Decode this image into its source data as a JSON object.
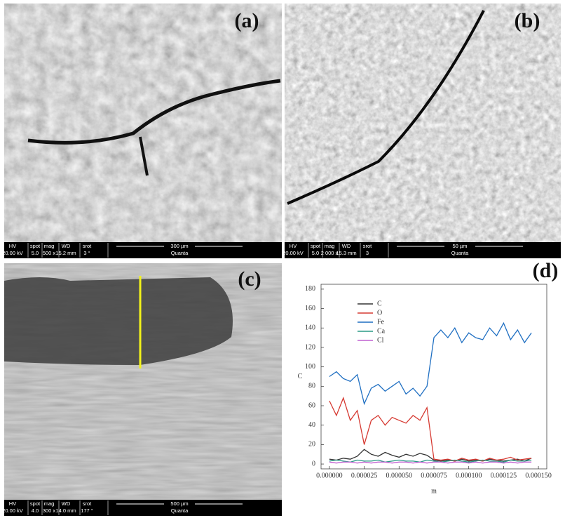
{
  "panels": [
    {
      "label": "(a)",
      "info_bar": {
        "headers": [
          "HV",
          "spot",
          "mag",
          "WD",
          "srot"
        ],
        "values": [
          "20.00 kV",
          "5.0",
          "500 x",
          "15.2 mm",
          "3 °"
        ],
        "scale": "300 µm",
        "brand": "Quanta"
      }
    },
    {
      "label": "(b)",
      "info_bar": {
        "headers": [
          "HV",
          "spot",
          "mag",
          "WD",
          "srot"
        ],
        "values": [
          "20.00 kV",
          "5.0",
          "2 000 x",
          "15.3 mm",
          "3"
        ],
        "scale": "50 µm",
        "brand": "Quanta"
      }
    },
    {
      "label": "(c)",
      "info_bar": {
        "headers": [
          "HV",
          "spot",
          "mag",
          "WD",
          "srot"
        ],
        "values": [
          "20.00 kV",
          "4.0",
          "300 x",
          "14.0 mm",
          "177 °"
        ],
        "scale": "500 µm",
        "brand": "Quanta"
      }
    }
  ],
  "chart_data": {
    "type": "line",
    "panel_label": "(d)",
    "x_label": "m",
    "y_label": "C",
    "x": [
      0,
      5e-06,
      1e-05,
      1.5e-05,
      2e-05,
      2.5e-05,
      3e-05,
      3.5e-05,
      4e-05,
      4.5e-05,
      5e-05,
      5.5e-05,
      6e-05,
      6.5e-05,
      7e-05,
      7.5e-05,
      8e-05,
      8.5e-05,
      9e-05,
      9.5e-05,
      0.0001,
      0.000105,
      0.00011,
      0.000115,
      0.00012,
      0.000125,
      0.00013,
      0.000135,
      0.00014,
      0.000145
    ],
    "series": [
      {
        "name": "C",
        "color": "#333333",
        "values": [
          5,
          4,
          6,
          5,
          8,
          15,
          10,
          8,
          12,
          9,
          7,
          10,
          8,
          11,
          9,
          4,
          3,
          4,
          3,
          5,
          3,
          4,
          3,
          5,
          4,
          3,
          4,
          5,
          3,
          6
        ]
      },
      {
        "name": "O",
        "color": "#d63a32",
        "values": [
          65,
          50,
          68,
          45,
          55,
          20,
          45,
          50,
          40,
          48,
          45,
          42,
          50,
          45,
          58,
          5,
          4,
          5,
          3,
          6,
          4,
          5,
          3,
          6,
          4,
          5,
          7,
          4,
          5,
          6
        ]
      },
      {
        "name": "Fe",
        "color": "#1f6fc2",
        "values": [
          90,
          95,
          88,
          85,
          92,
          62,
          78,
          82,
          75,
          80,
          85,
          72,
          78,
          70,
          80,
          130,
          138,
          130,
          140,
          125,
          135,
          130,
          128,
          140,
          132,
          145,
          128,
          138,
          125,
          135
        ]
      },
      {
        "name": "Ca",
        "color": "#2a9a86",
        "values": [
          3,
          4,
          3,
          2,
          4,
          3,
          3,
          4,
          2,
          3,
          4,
          3,
          3,
          2,
          4,
          3,
          2,
          3,
          4,
          3,
          2,
          3,
          4,
          3,
          3,
          2,
          4,
          3,
          3,
          4
        ]
      },
      {
        "name": "Cl",
        "color": "#c060d0",
        "values": [
          2,
          1,
          2,
          2,
          1,
          2,
          1,
          2,
          2,
          1,
          2,
          2,
          1,
          2,
          1,
          2,
          2,
          1,
          2,
          2,
          1,
          2,
          1,
          2,
          2,
          1,
          2,
          1,
          2,
          2
        ]
      }
    ],
    "xlim": [
      -6e-06,
      0.000156
    ],
    "ylim": [
      -5,
      185
    ],
    "xticks": [
      {
        "value": 0,
        "label": "0.000000"
      },
      {
        "value": 2.5e-05,
        "label": "0.000025"
      },
      {
        "value": 5e-05,
        "label": "0.000050"
      },
      {
        "value": 7.5e-05,
        "label": "0.000075"
      },
      {
        "value": 0.0001,
        "label": "0.000100"
      },
      {
        "value": 0.000125,
        "label": "0.000125"
      },
      {
        "value": 0.00015,
        "label": "0.000150"
      }
    ],
    "yticks": [
      0,
      20,
      40,
      60,
      80,
      100,
      120,
      140,
      160,
      180
    ],
    "legend": "upper left",
    "grid": false
  }
}
